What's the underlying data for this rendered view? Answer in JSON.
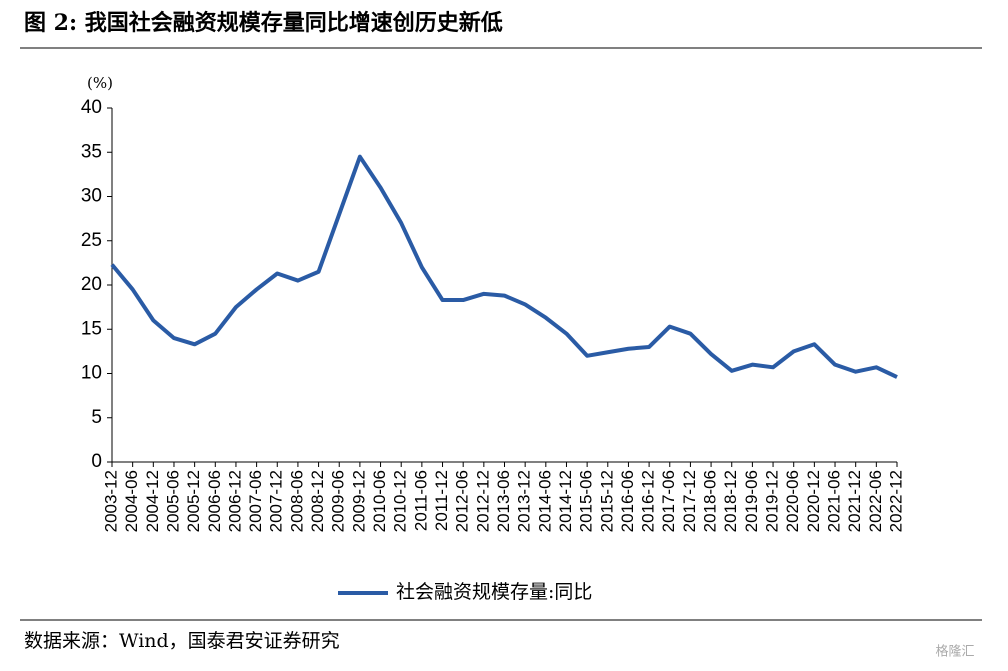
{
  "chart_data": {
    "type": "line",
    "title": "图 2:  我国社会融资规模存量同比增速创历史新低",
    "y_unit": "(%)",
    "source": "数据来源：Wind，国泰君安证券研究",
    "watermark": "格隆汇",
    "categories": [
      "2003-12",
      "2004-06",
      "2004-12",
      "2005-06",
      "2005-12",
      "2006-06",
      "2006-12",
      "2007-06",
      "2007-12",
      "2008-06",
      "2008-12",
      "2009-06",
      "2009-12",
      "2010-06",
      "2010-12",
      "2011-06",
      "2011-12",
      "2012-06",
      "2012-12",
      "2013-06",
      "2013-12",
      "2014-06",
      "2014-12",
      "2015-06",
      "2015-12",
      "2016-06",
      "2016-12",
      "2017-06",
      "2017-12",
      "2018-06",
      "2018-12",
      "2019-06",
      "2019-12",
      "2020-06",
      "2020-12",
      "2021-06",
      "2021-12",
      "2022-06",
      "2022-12"
    ],
    "series": [
      {
        "name": "社会融资规模存量:同比",
        "color": "#2a5ba5",
        "values": [
          22.3,
          19.5,
          16,
          14,
          13.3,
          14.5,
          17.5,
          19.5,
          21.3,
          20.5,
          21.5,
          28,
          34.5,
          31,
          27,
          22,
          18.3,
          18.3,
          19,
          18.8,
          17.8,
          16.3,
          14.5,
          12,
          12.4,
          12.8,
          13,
          15.3,
          14.5,
          12.2,
          10.3,
          11,
          10.7,
          12.5,
          13.3,
          11,
          10.2,
          10.7,
          9.6
        ]
      }
    ],
    "ylim": [
      0,
      40
    ],
    "yticks": [
      0,
      5,
      10,
      15,
      20,
      25,
      30,
      35,
      40
    ],
    "grid": false
  }
}
